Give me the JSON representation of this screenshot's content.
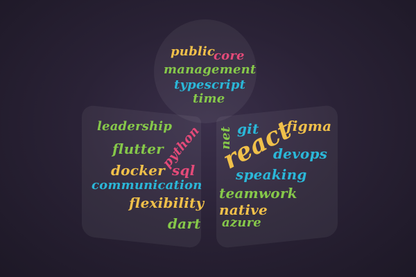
{
  "words": {
    "public": "public",
    "core": "core",
    "management": "management",
    "typescript": "typescript",
    "time": "time",
    "leadership": "leadership",
    "flutter": "flutter",
    "python": "python",
    "docker": "docker",
    "sql": "sql",
    "communication": "communication",
    "flexibility": "flexibility",
    "dart": "dart",
    "net": "net",
    "git": "git",
    "react": "react",
    "figma": "figma",
    "devops": "devops",
    "speaking": "speaking",
    "teamwork": "teamwork",
    "native": "native",
    "azure": "azure"
  },
  "colors": {
    "background": "#2a2236",
    "yellow": "#f0c04a",
    "pink": "#e44a79",
    "green": "#86c84a",
    "blue": "#2bb7d8"
  }
}
